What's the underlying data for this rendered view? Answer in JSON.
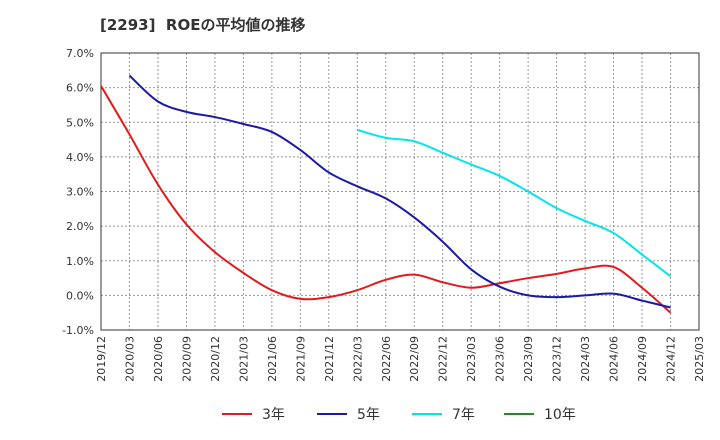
{
  "chart_data": {
    "type": "line",
    "title": "[2293]  ROEの平均値の推移",
    "xlabel": "",
    "ylabel": "",
    "ylim": [
      -1.0,
      7.0
    ],
    "yticks": [
      -1.0,
      0.0,
      1.0,
      2.0,
      3.0,
      4.0,
      5.0,
      6.0,
      7.0
    ],
    "ytick_labels": [
      "-1.0%",
      "0.0%",
      "1.0%",
      "2.0%",
      "3.0%",
      "4.0%",
      "5.0%",
      "6.0%",
      "7.0%"
    ],
    "x_tick_labels": [
      "2019/12",
      "2020/03",
      "2020/06",
      "2020/09",
      "2020/12",
      "2021/03",
      "2021/06",
      "2021/09",
      "2021/12",
      "2022/03",
      "2022/06",
      "2022/09",
      "2022/12",
      "2023/03",
      "2023/06",
      "2023/09",
      "2023/12",
      "2024/03",
      "2024/06",
      "2024/09",
      "2024/12",
      "2025/03"
    ],
    "grid": true,
    "legend_position": "bottom",
    "series": [
      {
        "name": "3年",
        "color": "#e31a1c",
        "start_index": 0,
        "values": [
          6.05,
          4.65,
          3.2,
          2.05,
          1.25,
          0.65,
          0.15,
          -0.1,
          -0.05,
          0.15,
          0.45,
          0.6,
          0.38,
          0.22,
          0.35,
          0.5,
          0.62,
          0.78,
          0.82,
          0.22,
          -0.5
        ]
      },
      {
        "name": "5年",
        "color": "#1a1aaa",
        "start_index": 1,
        "values": [
          6.35,
          5.6,
          5.3,
          5.15,
          4.95,
          4.72,
          4.2,
          3.55,
          3.15,
          2.8,
          2.25,
          1.55,
          0.75,
          0.25,
          0.0,
          -0.05,
          0.0,
          0.05,
          -0.15,
          -0.35
        ]
      },
      {
        "name": "7年",
        "color": "#00e5ee",
        "start_index": 9,
        "values": [
          4.78,
          4.55,
          4.45,
          4.12,
          3.78,
          3.45,
          3.0,
          2.52,
          2.15,
          1.8,
          1.18,
          0.55
        ]
      },
      {
        "name": "10年",
        "color": "#228b22",
        "start_index": 0,
        "values": []
      }
    ]
  }
}
